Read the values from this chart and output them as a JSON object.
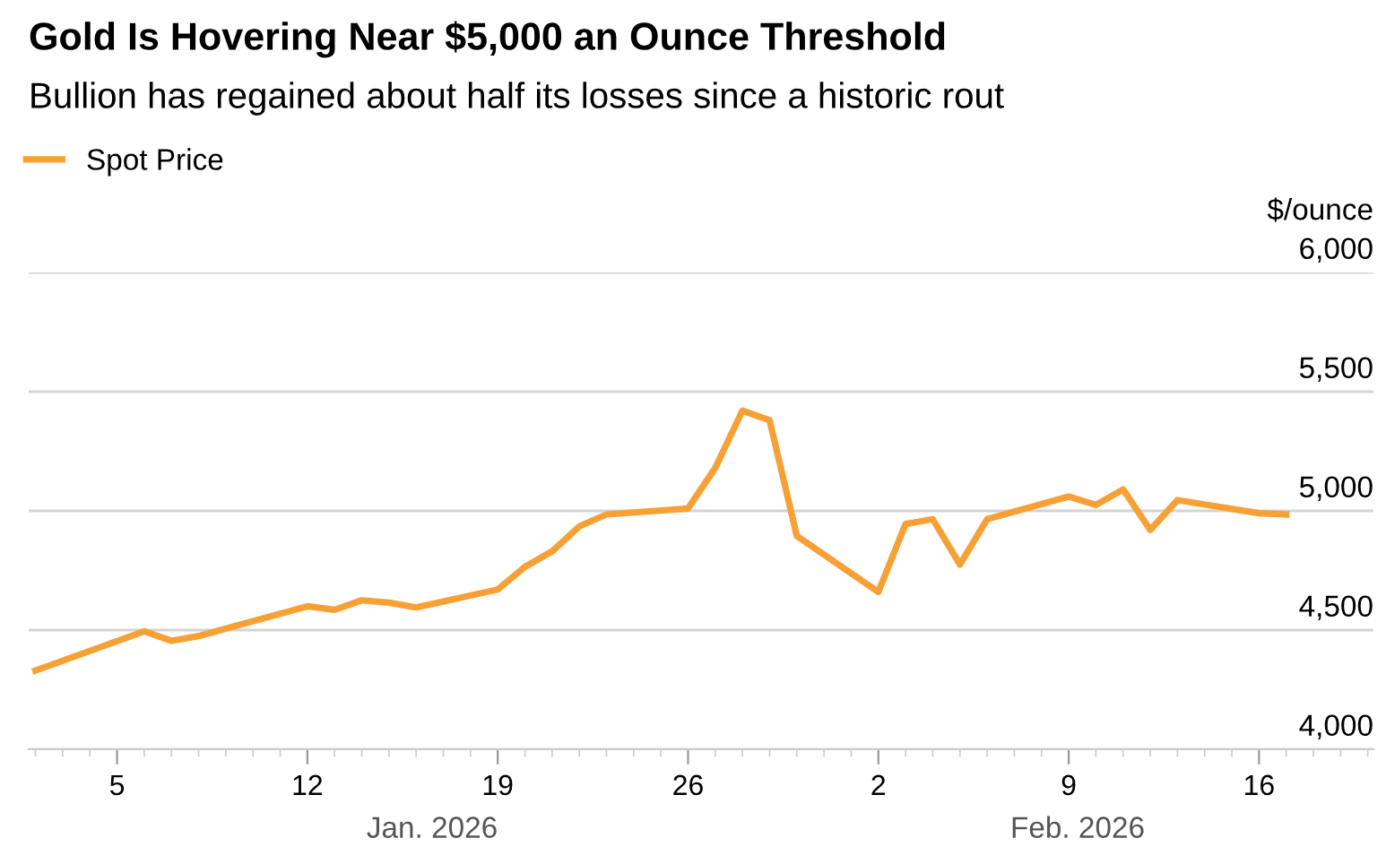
{
  "chart_data": {
    "type": "line",
    "title": "Gold Is Hovering Near $5,000 an Ounce Threshold",
    "subtitle": "Bullion has regained about half its losses since a historic rout",
    "ylabel": "$/ounce",
    "annotations": [
      "Jan. 2026",
      "Feb. 2026"
    ],
    "x": [
      "2026-01-02",
      "2026-01-06",
      "2026-01-07",
      "2026-01-08",
      "2026-01-12",
      "2026-01-13",
      "2026-01-14",
      "2026-01-15",
      "2026-01-16",
      "2026-01-19",
      "2026-01-20",
      "2026-01-21",
      "2026-01-22",
      "2026-01-23",
      "2026-01-26",
      "2026-01-27",
      "2026-01-28",
      "2026-01-29",
      "2026-01-30",
      "2026-02-02",
      "2026-02-03",
      "2026-02-04",
      "2026-02-05",
      "2026-02-06",
      "2026-02-09",
      "2026-02-10",
      "2026-02-11",
      "2026-02-12",
      "2026-02-13",
      "2026-02-16",
      "2026-02-17"
    ],
    "series": [
      {
        "name": "Spot Price",
        "color": "#f7a035",
        "values": [
          4330,
          4495,
          4455,
          4475,
          4600,
          4585,
          4625,
          4615,
          4595,
          4670,
          4765,
          4830,
          4935,
          4985,
          5010,
          5180,
          5420,
          5380,
          4895,
          4660,
          4945,
          4965,
          4775,
          4965,
          5060,
          5025,
          5090,
          4920,
          5045,
          4990,
          4985
        ]
      }
    ],
    "xlim": [
      "2026-01-01T18:00",
      "2026-02-20T05:00"
    ],
    "xticks": [
      {
        "value": "2026-01-05",
        "label": "5"
      },
      {
        "value": "2026-01-12",
        "label": "12"
      },
      {
        "value": "2026-01-19",
        "label": "19"
      },
      {
        "value": "2026-01-26",
        "label": "26"
      },
      {
        "value": "2026-02-02",
        "label": "2"
      },
      {
        "value": "2026-02-09",
        "label": "9"
      },
      {
        "value": "2026-02-16",
        "label": "16"
      }
    ],
    "ylim": [
      4000,
      6000
    ],
    "yticks": [
      {
        "value": 4000,
        "label": "4,000"
      },
      {
        "value": 4500,
        "label": "4,500"
      },
      {
        "value": 5000,
        "label": "5,000"
      },
      {
        "value": 5500,
        "label": "5,500"
      },
      {
        "value": 6000,
        "label": "6,000"
      }
    ],
    "grid": "y",
    "legend": "top left",
    "marker": "none",
    "line_style": "solid"
  }
}
